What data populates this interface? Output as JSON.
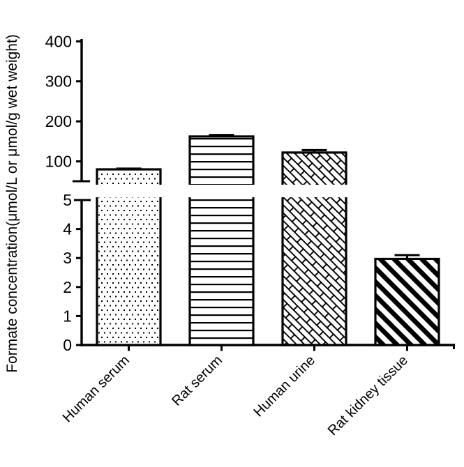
{
  "figure": {
    "background": "#ffffff",
    "ink": "#000000"
  },
  "chart_data": {
    "type": "bar",
    "title": "",
    "ylabel": "Formate concentration(μmol/L or μmol/g wet weight)",
    "xlabel": "",
    "categories": [
      "Human serum",
      "Rat serum",
      "Human urine",
      "Rat kidney tissue"
    ],
    "series": [
      {
        "name": "Formate concentration",
        "values": [
          80,
          162,
          122,
          2.97
        ],
        "errors_plus": [
          2,
          4,
          6,
          0.13
        ]
      }
    ],
    "bar_patterns": [
      "dots",
      "horizontal-lines",
      "diagonal-bricks",
      "thick-diagonal-stripes"
    ],
    "bar_fill": "#ffffff",
    "bar_stroke": "#000000",
    "grid": false,
    "legend": "none",
    "category_label_rotation_deg": 45,
    "axis": {
      "broken": true,
      "top_segment": {
        "tick_labels": [
          "100",
          "200",
          "300",
          "400"
        ],
        "tick_values": [
          100,
          200,
          300,
          400
        ],
        "range": [
          50,
          405
        ]
      },
      "bottom_segment": {
        "tick_labels": [
          "0",
          "1",
          "2",
          "3",
          "4",
          "5"
        ],
        "tick_values": [
          0,
          1,
          2,
          3,
          4,
          5
        ],
        "range": [
          0,
          5
        ]
      }
    }
  }
}
